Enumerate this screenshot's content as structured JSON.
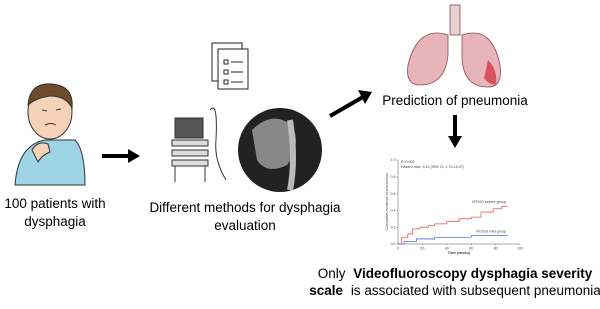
{
  "patients": {
    "line1": "100 patients with",
    "line2": "dysphagia"
  },
  "methods": {
    "line1": "Different methods for dysphagia",
    "line2": "evaluation"
  },
  "prediction": "Prediction of pneumonia",
  "conclusion": {
    "line1": {
      "normal": "Only",
      "bold": "Videofluoroscopy dysphagia severity"
    },
    "line2": {
      "bold": "scale",
      "normal": "is associated with subsequent pneumonia"
    }
  },
  "chart_data": {
    "type": "step",
    "annotations": [
      "P=0.002",
      "Hazard ratio, 5.12 (95% CI, 1.70-15.37)"
    ],
    "x_label": "Time (weeks)",
    "y_label": "Cumulative incidence of pneumonia",
    "xlim": [
      0,
      100
    ],
    "xticks": [
      0,
      20,
      40,
      60,
      80,
      100
    ],
    "ylim": [
      0,
      1
    ],
    "yticks": [
      {
        "value": 0,
        "label": "0.0"
      },
      0.2,
      0.4,
      0.6,
      0.8,
      {
        "value": 1,
        "label": "1.0"
      }
    ],
    "series": [
      {
        "name": "VFDSS severe group",
        "color": "#e05a5a",
        "x": [
          0,
          3,
          8,
          12,
          18,
          25,
          30,
          40,
          50,
          60,
          68,
          78,
          85,
          90
        ],
        "values": [
          0,
          0.08,
          0.12,
          0.18,
          0.2,
          0.22,
          0.24,
          0.27,
          0.3,
          0.32,
          0.38,
          0.42,
          0.45,
          0.45
        ]
      },
      {
        "name": "VFDSS mild group",
        "color": "#4a6fd0",
        "x": [
          0,
          5,
          15,
          30,
          60,
          90
        ],
        "values": [
          0,
          0.03,
          0.06,
          0.08,
          0.1,
          0.1
        ]
      }
    ]
  }
}
